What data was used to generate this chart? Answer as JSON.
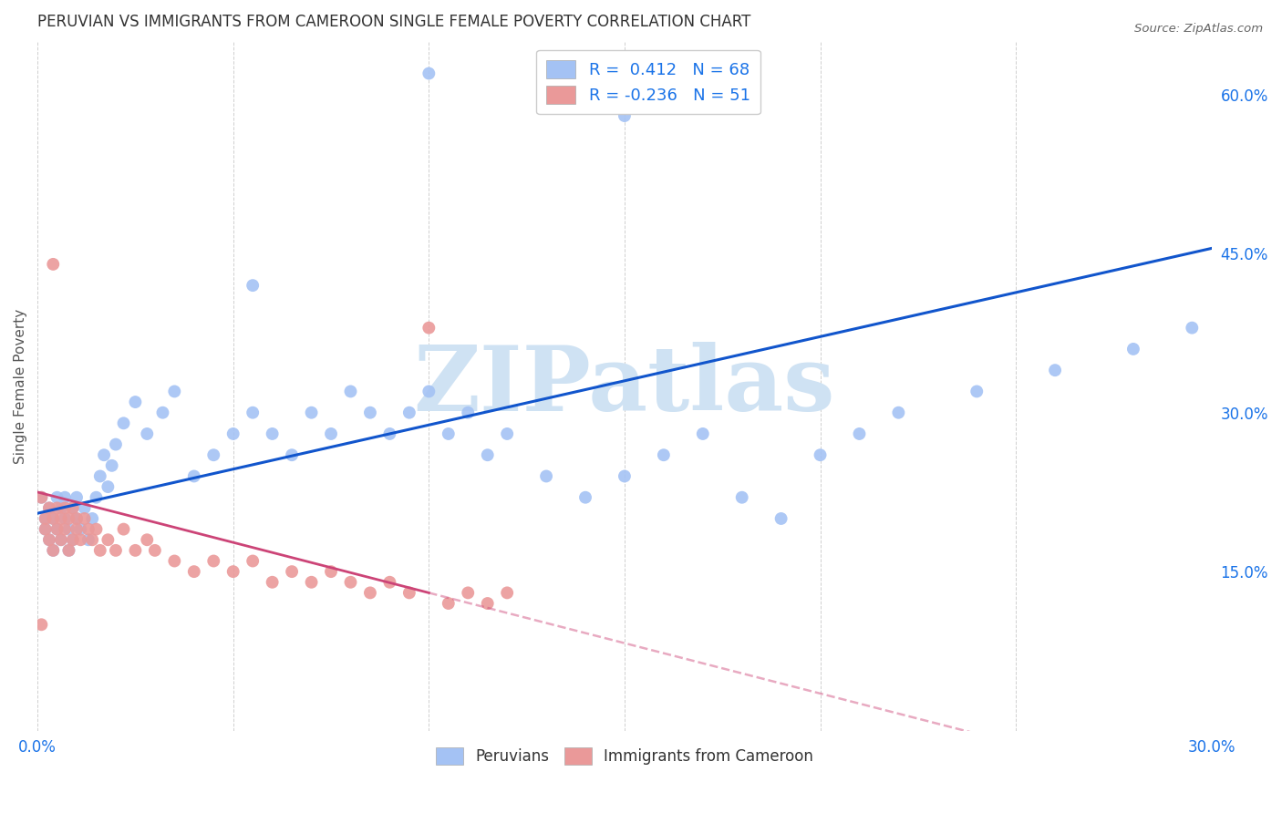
{
  "title": "PERUVIAN VS IMMIGRANTS FROM CAMEROON SINGLE FEMALE POVERTY CORRELATION CHART",
  "source": "Source: ZipAtlas.com",
  "ylabel": "Single Female Poverty",
  "xlim": [
    0.0,
    0.3
  ],
  "ylim": [
    0.0,
    0.65
  ],
  "x_tick_positions": [
    0.0,
    0.05,
    0.1,
    0.15,
    0.2,
    0.25,
    0.3
  ],
  "x_tick_labels": [
    "0.0%",
    "",
    "",
    "",
    "",
    "",
    "30.0%"
  ],
  "y_tick_positions": [
    0.15,
    0.3,
    0.45,
    0.6
  ],
  "y_tick_labels": [
    "15.0%",
    "30.0%",
    "45.0%",
    "60.0%"
  ],
  "blue_color": "#a4c2f4",
  "pink_color": "#ea9999",
  "blue_line_color": "#1155cc",
  "pink_line_solid_color": "#cc4477",
  "pink_line_dash_color": "#cc4477",
  "watermark_text": "ZIPatlas",
  "watermark_color": "#cfe2f3",
  "blue_line_y0": 0.205,
  "blue_line_y1": 0.455,
  "pink_line_y0": 0.225,
  "pink_line_y1_solid": 0.13,
  "pink_line_x1_solid": 0.1,
  "pink_line_y1_dash": 0.055,
  "peruvians_x": [
    0.001,
    0.002,
    0.002,
    0.003,
    0.003,
    0.004,
    0.004,
    0.005,
    0.005,
    0.006,
    0.006,
    0.007,
    0.007,
    0.008,
    0.008,
    0.009,
    0.009,
    0.01,
    0.01,
    0.011,
    0.012,
    0.013,
    0.014,
    0.015,
    0.016,
    0.017,
    0.018,
    0.019,
    0.02,
    0.022,
    0.025,
    0.028,
    0.032,
    0.035,
    0.04,
    0.045,
    0.05,
    0.055,
    0.06,
    0.065,
    0.07,
    0.075,
    0.08,
    0.085,
    0.09,
    0.095,
    0.1,
    0.105,
    0.11,
    0.115,
    0.12,
    0.13,
    0.14,
    0.15,
    0.16,
    0.17,
    0.18,
    0.19,
    0.2,
    0.21,
    0.22,
    0.24,
    0.26,
    0.28,
    0.295,
    0.1,
    0.15,
    0.055
  ],
  "peruvians_y": [
    0.22,
    0.2,
    0.19,
    0.21,
    0.18,
    0.2,
    0.17,
    0.22,
    0.19,
    0.21,
    0.18,
    0.2,
    0.22,
    0.19,
    0.17,
    0.21,
    0.18,
    0.2,
    0.22,
    0.19,
    0.21,
    0.18,
    0.2,
    0.22,
    0.24,
    0.26,
    0.23,
    0.25,
    0.27,
    0.29,
    0.31,
    0.28,
    0.3,
    0.32,
    0.24,
    0.26,
    0.28,
    0.3,
    0.28,
    0.26,
    0.3,
    0.28,
    0.32,
    0.3,
    0.28,
    0.3,
    0.32,
    0.28,
    0.3,
    0.26,
    0.28,
    0.24,
    0.22,
    0.24,
    0.26,
    0.28,
    0.22,
    0.2,
    0.26,
    0.28,
    0.3,
    0.32,
    0.34,
    0.36,
    0.38,
    0.62,
    0.58,
    0.42
  ],
  "cameroon_x": [
    0.001,
    0.002,
    0.002,
    0.003,
    0.003,
    0.004,
    0.004,
    0.005,
    0.005,
    0.006,
    0.006,
    0.007,
    0.007,
    0.008,
    0.008,
    0.009,
    0.009,
    0.01,
    0.01,
    0.011,
    0.012,
    0.013,
    0.014,
    0.015,
    0.016,
    0.018,
    0.02,
    0.022,
    0.025,
    0.028,
    0.03,
    0.035,
    0.04,
    0.045,
    0.05,
    0.055,
    0.06,
    0.065,
    0.07,
    0.075,
    0.08,
    0.085,
    0.09,
    0.095,
    0.1,
    0.105,
    0.11,
    0.115,
    0.12,
    0.004,
    0.001
  ],
  "cameroon_y": [
    0.22,
    0.2,
    0.19,
    0.21,
    0.18,
    0.2,
    0.17,
    0.21,
    0.19,
    0.2,
    0.18,
    0.21,
    0.19,
    0.2,
    0.17,
    0.21,
    0.18,
    0.2,
    0.19,
    0.18,
    0.2,
    0.19,
    0.18,
    0.19,
    0.17,
    0.18,
    0.17,
    0.19,
    0.17,
    0.18,
    0.17,
    0.16,
    0.15,
    0.16,
    0.15,
    0.16,
    0.14,
    0.15,
    0.14,
    0.15,
    0.14,
    0.13,
    0.14,
    0.13,
    0.38,
    0.12,
    0.13,
    0.12,
    0.13,
    0.44,
    0.1
  ]
}
